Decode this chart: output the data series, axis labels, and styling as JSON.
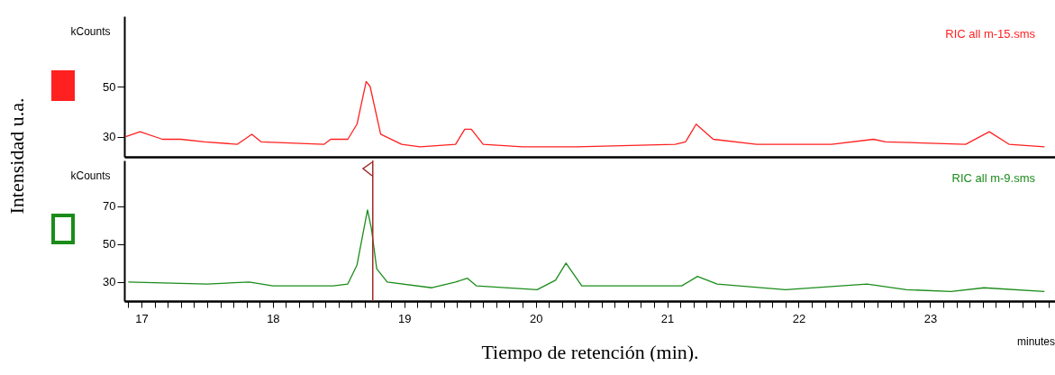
{
  "chart_data": [
    {
      "type": "line",
      "ylabel": "kCounts",
      "xlim": [
        16.87,
        23.95
      ],
      "ylim": [
        22,
        78
      ],
      "yticks": [
        30,
        50
      ],
      "tick_labels": "y",
      "annotations": [
        "Intensidad u.a."
      ],
      "series": [
        {
          "name": "RIC all m-15.sms",
          "color": "#ff2020",
          "x": [
            16.88,
            16.99,
            17.16,
            17.3,
            17.48,
            17.73,
            17.84,
            17.91,
            18.39,
            18.44,
            18.57,
            18.64,
            18.71,
            18.74,
            18.82,
            18.98,
            19.12,
            19.39,
            19.46,
            19.51,
            19.6,
            19.9,
            20.31,
            21.06,
            21.14,
            21.22,
            21.35,
            21.68,
            22.25,
            22.57,
            22.66,
            23.27,
            23.45,
            23.6,
            23.87
          ],
          "values": [
            30,
            32,
            29,
            29,
            28,
            27,
            31,
            28,
            27,
            29,
            29,
            35,
            52,
            50,
            31,
            27,
            26,
            27,
            33,
            33,
            27,
            26,
            26,
            27,
            28,
            35,
            29,
            27,
            27,
            29,
            28,
            27,
            32,
            27,
            26
          ]
        }
      ]
    },
    {
      "type": "line",
      "ylabel": "kCounts",
      "xlabel": "Tiempo de retención (min).",
      "xlim": [
        16.87,
        23.95
      ],
      "ylim": [
        20,
        94
      ],
      "yticks": [
        30,
        50,
        70
      ],
      "annotations": [
        "minutes"
      ],
      "xticks": [
        {
          "value": 16.9,
          "label": null
        },
        17,
        {
          "value": 17.1,
          "label": null
        },
        {
          "value": 17.2,
          "label": null
        },
        {
          "value": 17.3,
          "label": null
        },
        {
          "value": 17.4,
          "label": null
        },
        {
          "value": 17.5,
          "label": null
        },
        {
          "value": 17.6,
          "label": null
        },
        {
          "value": 17.7,
          "label": null
        },
        {
          "value": 17.8,
          "label": null
        },
        {
          "value": 17.9,
          "label": null
        },
        18,
        {
          "value": 18.1,
          "label": null
        },
        {
          "value": 18.2,
          "label": null
        },
        {
          "value": 18.3,
          "label": null
        },
        {
          "value": 18.4,
          "label": null
        },
        {
          "value": 18.5,
          "label": null
        },
        {
          "value": 18.6,
          "label": null
        },
        {
          "value": 18.7,
          "label": null
        },
        {
          "value": 18.8,
          "label": null
        },
        {
          "value": 18.9,
          "label": null
        },
        19,
        {
          "value": 19.1,
          "label": null
        },
        {
          "value": 19.2,
          "label": null
        },
        {
          "value": 19.3,
          "label": null
        },
        {
          "value": 19.4,
          "label": null
        },
        {
          "value": 19.5,
          "label": null
        },
        {
          "value": 19.6,
          "label": null
        },
        {
          "value": 19.7,
          "label": null
        },
        {
          "value": 19.8,
          "label": null
        },
        {
          "value": 19.9,
          "label": null
        },
        20,
        {
          "value": 20.1,
          "label": null
        },
        {
          "value": 20.2,
          "label": null
        },
        {
          "value": 20.3,
          "label": null
        },
        {
          "value": 20.4,
          "label": null
        },
        {
          "value": 20.5,
          "label": null
        },
        {
          "value": 20.6,
          "label": null
        },
        {
          "value": 20.7,
          "label": null
        },
        {
          "value": 20.8,
          "label": null
        },
        {
          "value": 20.9,
          "label": null
        },
        21,
        {
          "value": 21.1,
          "label": null
        },
        {
          "value": 21.2,
          "label": null
        },
        {
          "value": 21.3,
          "label": null
        },
        {
          "value": 21.4,
          "label": null
        },
        {
          "value": 21.5,
          "label": null
        },
        {
          "value": 21.6,
          "label": null
        },
        {
          "value": 21.7,
          "label": null
        },
        {
          "value": 21.8,
          "label": null
        },
        {
          "value": 21.9,
          "label": null
        },
        22,
        {
          "value": 22.1,
          "label": null
        },
        {
          "value": 22.2,
          "label": null
        },
        {
          "value": 22.3,
          "label": null
        },
        {
          "value": 22.4,
          "label": null
        },
        {
          "value": 22.5,
          "label": null
        },
        {
          "value": 22.6,
          "label": null
        },
        {
          "value": 22.7,
          "label": null
        },
        {
          "value": 22.8,
          "label": null
        },
        {
          "value": 22.9,
          "label": null
        },
        23,
        {
          "value": 23.1,
          "label": null
        },
        {
          "value": 23.2,
          "label": null
        },
        {
          "value": 23.3,
          "label": null
        },
        {
          "value": 23.4,
          "label": null
        },
        {
          "value": 23.5,
          "label": null
        },
        {
          "value": 23.6,
          "label": null
        },
        {
          "value": 23.7,
          "label": null
        },
        {
          "value": 23.8,
          "label": null
        },
        {
          "value": 23.9,
          "label": null
        }
      ],
      "ref_lines": [
        {
          "axis": "x",
          "value": 18.76,
          "color": "#a52a2a"
        }
      ],
      "series": [
        {
          "name": "RIC all m-9.sms",
          "color": "#1a8c1a",
          "x": [
            16.9,
            17.5,
            17.82,
            18.0,
            18.46,
            18.57,
            18.64,
            18.72,
            18.75,
            18.79,
            18.87,
            19.21,
            19.39,
            19.48,
            19.55,
            20.01,
            20.15,
            20.23,
            20.35,
            20.4,
            21.11,
            21.23,
            21.38,
            21.9,
            22.52,
            22.82,
            23.16,
            23.41,
            23.87
          ],
          "values": [
            30,
            29,
            30,
            28,
            28,
            29,
            39,
            68,
            58,
            37,
            30,
            27,
            30,
            32,
            28,
            26,
            31,
            40,
            28,
            28,
            28,
            33,
            29,
            26,
            29,
            26,
            25,
            27,
            25
          ]
        }
      ]
    }
  ]
}
